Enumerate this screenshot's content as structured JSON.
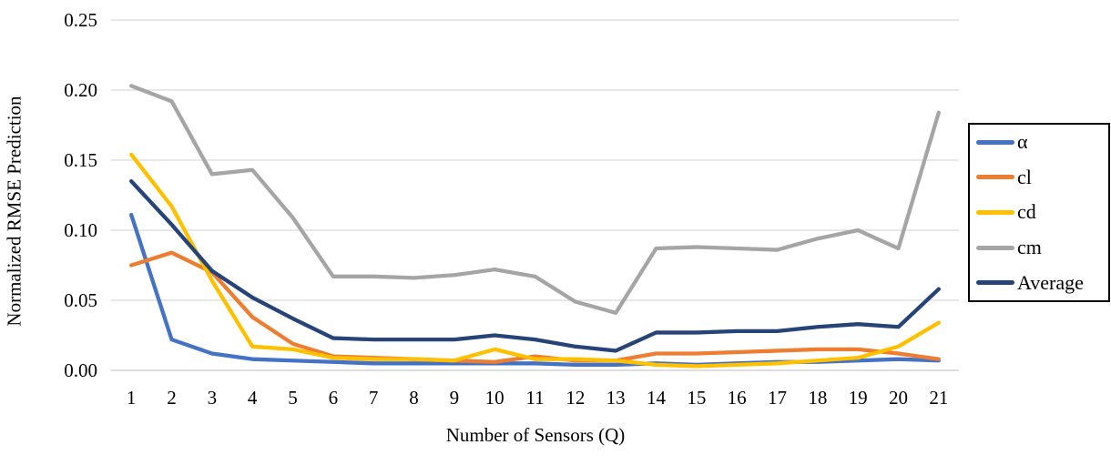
{
  "chart_data": {
    "type": "line",
    "title": "",
    "xlabel": "Number of Sensors (Q)",
    "ylabel": "Normalized RMSE Prediction",
    "x_labels": [
      "1",
      "2",
      "3",
      "4",
      "5",
      "6",
      "7",
      "8",
      "9",
      "10",
      "11",
      "12",
      "13",
      "14",
      "15",
      "16",
      "17",
      "18",
      "19",
      "20",
      "21"
    ],
    "ylim": [
      0,
      0.25
    ],
    "ytick_labels": [
      "0.00",
      "0.05",
      "0.10",
      "0.15",
      "0.20",
      "0.25"
    ],
    "ytick_values": [
      0.0,
      0.05,
      0.1,
      0.15,
      0.2,
      0.25
    ],
    "grid": true,
    "legend_position": "right",
    "colors": {
      "gridline": "#D9D9D9",
      "axis_line": "#C9C9C9",
      "text": "#000000",
      "legend_border": "#000000"
    },
    "series": [
      {
        "name": "α",
        "color": "#4472C4",
        "values": [
          0.111,
          0.022,
          0.012,
          0.008,
          0.007,
          0.006,
          0.005,
          0.005,
          0.005,
          0.005,
          0.005,
          0.004,
          0.004,
          0.005,
          0.004,
          0.005,
          0.006,
          0.006,
          0.007,
          0.008,
          0.007
        ]
      },
      {
        "name": "cl",
        "color": "#ED7D31",
        "values": [
          0.075,
          0.084,
          0.07,
          0.038,
          0.019,
          0.01,
          0.009,
          0.008,
          0.007,
          0.006,
          0.01,
          0.007,
          0.007,
          0.012,
          0.012,
          0.013,
          0.014,
          0.015,
          0.015,
          0.012,
          0.008
        ]
      },
      {
        "name": "cd",
        "color": "#FFC000",
        "values": [
          0.154,
          0.117,
          0.064,
          0.017,
          0.015,
          0.009,
          0.008,
          0.008,
          0.007,
          0.015,
          0.008,
          0.008,
          0.007,
          0.004,
          0.003,
          0.004,
          0.005,
          0.007,
          0.009,
          0.017,
          0.034
        ]
      },
      {
        "name": "cm",
        "color": "#A5A5A5",
        "values": [
          0.203,
          0.192,
          0.14,
          0.143,
          0.109,
          0.067,
          0.067,
          0.066,
          0.068,
          0.072,
          0.067,
          0.049,
          0.041,
          0.087,
          0.088,
          0.087,
          0.086,
          0.094,
          0.1,
          0.087,
          0.184
        ]
      },
      {
        "name": "Average",
        "color": "#264478",
        "values": [
          0.135,
          0.104,
          0.071,
          0.052,
          0.037,
          0.023,
          0.022,
          0.022,
          0.022,
          0.025,
          0.022,
          0.017,
          0.014,
          0.027,
          0.027,
          0.028,
          0.028,
          0.031,
          0.033,
          0.031,
          0.058
        ]
      }
    ]
  }
}
